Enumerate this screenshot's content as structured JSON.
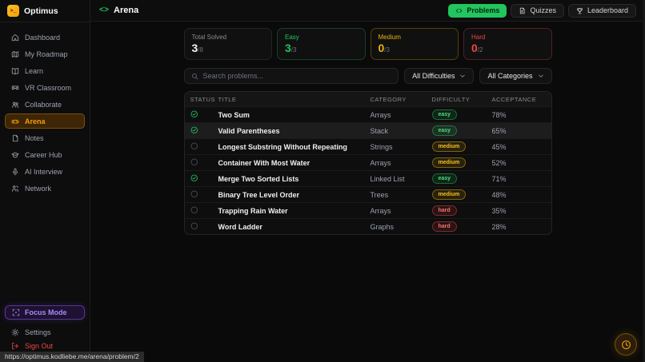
{
  "colors": {
    "accent": "#f59e0b",
    "green": "#22c55e",
    "yellow": "#eab308",
    "red": "#ef4444",
    "purple": "#a78bfa"
  },
  "brand": {
    "name": "Optimus",
    "logo_glyph": ">_"
  },
  "topbar": {
    "page_title": "Arena",
    "code_glyph": "<>",
    "buttons": [
      {
        "label": "Problems",
        "icon": "code-icon",
        "active": true
      },
      {
        "label": "Quizzes",
        "icon": "document-icon",
        "active": false
      },
      {
        "label": "Leaderboard",
        "icon": "trophy-icon",
        "active": false
      }
    ]
  },
  "sidebar": {
    "items": [
      {
        "label": "Dashboard",
        "icon": "home-icon",
        "active": false
      },
      {
        "label": "My Roadmap",
        "icon": "map-icon",
        "active": false
      },
      {
        "label": "Learn",
        "icon": "book-icon",
        "active": false
      },
      {
        "label": "VR Classroom",
        "icon": "vr-headset-icon",
        "active": false
      },
      {
        "label": "Collaborate",
        "icon": "users-icon",
        "active": false
      },
      {
        "label": "Arena",
        "icon": "gamepad-icon",
        "active": true
      },
      {
        "label": "Notes",
        "icon": "note-icon",
        "active": false
      },
      {
        "label": "Career Hub",
        "icon": "graduation-cap-icon",
        "active": false
      },
      {
        "label": "AI Interview",
        "icon": "microphone-icon",
        "active": false
      },
      {
        "label": "Network",
        "icon": "network-icon",
        "active": false
      }
    ],
    "focus_mode_label": "Focus Mode",
    "settings_label": "Settings",
    "sign_out_label": "Sign Out"
  },
  "stats": [
    {
      "label": "Total Solved",
      "value": "3",
      "total": "/8",
      "tone": "neutral"
    },
    {
      "label": "Easy",
      "value": "3",
      "total": "/3",
      "tone": "easy"
    },
    {
      "label": "Medium",
      "value": "0",
      "total": "/3",
      "tone": "medium"
    },
    {
      "label": "Hard",
      "value": "0",
      "total": "/2",
      "tone": "hard"
    }
  ],
  "filters": {
    "search_placeholder": "Search problems...",
    "difficulty": "All Difficulties",
    "category": "All Categories"
  },
  "problems_table": {
    "columns": [
      "STATUS",
      "TITLE",
      "CATEGORY",
      "DIFFICULTY",
      "ACCEPTANCE"
    ],
    "rows": [
      {
        "title": "Two Sum",
        "category": "Arrays",
        "difficulty": "easy",
        "acceptance": "78%",
        "solved": true,
        "hovered": false
      },
      {
        "title": "Valid Parentheses",
        "category": "Stack",
        "difficulty": "easy",
        "acceptance": "65%",
        "solved": true,
        "hovered": true
      },
      {
        "title": "Longest Substring Without Repeating",
        "category": "Strings",
        "difficulty": "medium",
        "acceptance": "45%",
        "solved": false,
        "hovered": false
      },
      {
        "title": "Container With Most Water",
        "category": "Arrays",
        "difficulty": "medium",
        "acceptance": "52%",
        "solved": false,
        "hovered": false
      },
      {
        "title": "Merge Two Sorted Lists",
        "category": "Linked List",
        "difficulty": "easy",
        "acceptance": "71%",
        "solved": true,
        "hovered": false
      },
      {
        "title": "Binary Tree Level Order",
        "category": "Trees",
        "difficulty": "medium",
        "acceptance": "48%",
        "solved": false,
        "hovered": false
      },
      {
        "title": "Trapping Rain Water",
        "category": "Arrays",
        "difficulty": "hard",
        "acceptance": "35%",
        "solved": false,
        "hovered": false
      },
      {
        "title": "Word Ladder",
        "category": "Graphs",
        "difficulty": "hard",
        "acceptance": "28%",
        "solved": false,
        "hovered": false
      }
    ]
  },
  "statusbar": {
    "url": "https://optimus.kodliebe.me/arena/problem/2"
  }
}
